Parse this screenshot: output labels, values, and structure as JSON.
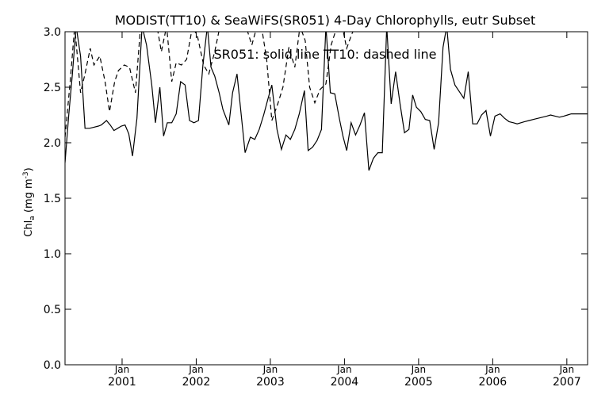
{
  "chart_data": {
    "type": "line",
    "title": "MODIST(TT10) & SeaWiFS(SR051) 4-Day Chlorophylls, eutr Subset",
    "annotation": "SR051: solid line   TT10: dashed line",
    "ylabel": "Chl",
    "ylabel_subscript": "a",
    "ylabel_units_prefix": "(mg m",
    "ylabel_units_exp": "-3",
    "ylabel_units_suffix": ")",
    "ylim": [
      0.0,
      3.0
    ],
    "yticks": [
      0.0,
      0.5,
      1.0,
      1.5,
      2.0,
      2.5,
      3.0
    ],
    "ytick_labels": [
      "0.0",
      "0.5",
      "1.0",
      "1.5",
      "2.0",
      "2.5",
      "3.0"
    ],
    "xlim": [
      2000.23,
      2007.28
    ],
    "xticks": [
      {
        "x": 2001.0,
        "month": "Jan",
        "year": "2001"
      },
      {
        "x": 2002.0,
        "month": "Jan",
        "year": "2002"
      },
      {
        "x": 2003.0,
        "month": "Jan",
        "year": "2003"
      },
      {
        "x": 2004.0,
        "month": "Jan",
        "year": "2004"
      },
      {
        "x": 2005.0,
        "month": "Jan",
        "year": "2005"
      },
      {
        "x": 2006.0,
        "month": "Jan",
        "year": "2006"
      },
      {
        "x": 2007.0,
        "month": "Jan",
        "year": "2007"
      }
    ],
    "series": [
      {
        "name": "SR051",
        "style": "solid",
        "x": [
          2000.23,
          2000.28,
          2000.33,
          2000.38,
          2000.44,
          2000.5,
          2000.56,
          2000.62,
          2000.68,
          2000.72,
          2000.79,
          2000.84,
          2000.89,
          2000.94,
          2000.99,
          2001.04,
          2001.09,
          2001.14,
          2001.2,
          2001.27,
          2001.33,
          2001.4,
          2001.45,
          2001.51,
          2001.56,
          2001.61,
          2001.67,
          2001.73,
          2001.79,
          2001.85,
          2001.91,
          2001.97,
          2002.03,
          2002.09,
          2002.15,
          2002.2,
          2002.25,
          2002.31,
          2002.36,
          2002.44,
          2002.49,
          2002.55,
          2002.6,
          2002.66,
          2002.73,
          2002.79,
          2002.85,
          2002.91,
          2002.97,
          2003.02,
          2003.09,
          2003.15,
          2003.21,
          2003.27,
          2003.33,
          2003.39,
          2003.46,
          2003.51,
          2003.57,
          2003.63,
          2003.69,
          2003.75,
          2003.81,
          2003.87,
          2003.93,
          2003.98,
          2004.03,
          2004.09,
          2004.15,
          2004.21,
          2004.27,
          2004.33,
          2004.39,
          2004.45,
          2004.51,
          2004.57,
          2004.63,
          2004.69,
          2004.75,
          2004.81,
          2004.87,
          2004.92,
          2004.97,
          2005.03,
          2005.09,
          2005.15,
          2005.21,
          2005.27,
          2005.33,
          2005.38,
          2005.43,
          2005.49,
          2005.55,
          2005.61,
          2005.67,
          2005.73,
          2005.79,
          2005.85,
          2005.91,
          2005.97,
          2006.03,
          2006.1,
          2006.16,
          2006.22,
          2006.28,
          2006.33,
          2006.38,
          2006.43,
          2006.49,
          2006.55,
          2006.61,
          2006.67,
          2006.73,
          2006.78,
          2006.84,
          2006.9,
          2006.96,
          2007.01,
          2007.06,
          2007.11,
          2007.17,
          2007.22,
          2007.28
        ],
        "y": [
          1.82,
          2.25,
          2.62,
          3.05,
          2.78,
          2.13,
          2.13,
          2.14,
          2.15,
          2.16,
          2.2,
          2.16,
          2.11,
          2.13,
          2.15,
          2.16,
          2.08,
          1.88,
          2.22,
          3.05,
          2.88,
          2.52,
          2.18,
          2.5,
          2.06,
          2.18,
          2.18,
          2.26,
          2.55,
          2.52,
          2.2,
          2.18,
          2.2,
          2.7,
          3.05,
          2.68,
          2.6,
          2.45,
          2.3,
          2.16,
          2.45,
          2.62,
          2.3,
          1.91,
          2.05,
          2.03,
          2.12,
          2.25,
          2.4,
          2.52,
          2.12,
          1.94,
          2.07,
          2.03,
          2.12,
          2.26,
          2.47,
          1.93,
          1.96,
          2.02,
          2.12,
          3.05,
          2.45,
          2.44,
          2.22,
          2.06,
          1.93,
          2.18,
          2.07,
          2.16,
          2.27,
          1.75,
          1.86,
          1.91,
          1.91,
          3.05,
          2.35,
          2.64,
          2.35,
          2.09,
          2.12,
          2.43,
          2.32,
          2.28,
          2.21,
          2.2,
          1.94,
          2.18,
          2.86,
          3.05,
          2.66,
          2.52,
          2.46,
          2.4,
          2.64,
          2.17,
          2.17,
          2.25,
          2.29,
          2.06,
          2.24,
          2.26,
          2.22,
          2.19,
          2.18,
          2.17,
          2.18,
          2.19,
          2.2,
          2.21,
          2.22,
          2.23,
          2.24,
          2.25,
          2.24,
          2.23,
          2.24,
          2.25,
          2.26,
          2.26,
          2.26,
          2.26,
          2.26
        ]
      },
      {
        "name": "TT10",
        "style": "dashed",
        "x": [
          2000.23,
          2000.3,
          2000.36,
          2000.44,
          2000.5,
          2000.57,
          2000.62,
          2000.7,
          2000.77,
          2000.83,
          2000.9,
          2000.95,
          2001.03,
          2001.1,
          2001.18,
          2001.25,
          2001.32,
          2001.4,
          2001.47,
          2001.53,
          2001.6,
          2001.67,
          2001.73,
          2001.8,
          2001.87,
          2001.95,
          2002.02,
          2002.1,
          2002.17,
          2002.25,
          2002.32,
          2002.38,
          2002.45,
          2002.52,
          2002.6,
          2002.67,
          2002.75,
          2002.82,
          2002.88,
          2002.95,
          2003.02,
          2003.1,
          2003.17,
          2003.25,
          2003.33,
          2003.4,
          2003.47,
          2003.53,
          2003.6,
          2003.67,
          2003.75,
          2003.82,
          2003.9,
          2003.97,
          2004.03,
          2004.1,
          2004.15
        ],
        "y": [
          2.05,
          2.55,
          3.05,
          2.45,
          2.62,
          2.85,
          2.7,
          2.78,
          2.55,
          2.28,
          2.55,
          2.65,
          2.7,
          2.68,
          2.45,
          3.05,
          3.05,
          3.05,
          3.05,
          2.82,
          3.05,
          2.55,
          2.72,
          2.7,
          2.75,
          3.05,
          2.95,
          2.7,
          2.62,
          2.82,
          3.05,
          3.05,
          3.05,
          3.05,
          3.05,
          3.05,
          2.88,
          3.05,
          3.05,
          2.75,
          2.2,
          2.35,
          2.5,
          2.86,
          2.68,
          3.05,
          2.92,
          2.5,
          2.36,
          2.48,
          2.53,
          2.88,
          3.05,
          3.05,
          2.85,
          2.98,
          3.05
        ]
      }
    ]
  }
}
